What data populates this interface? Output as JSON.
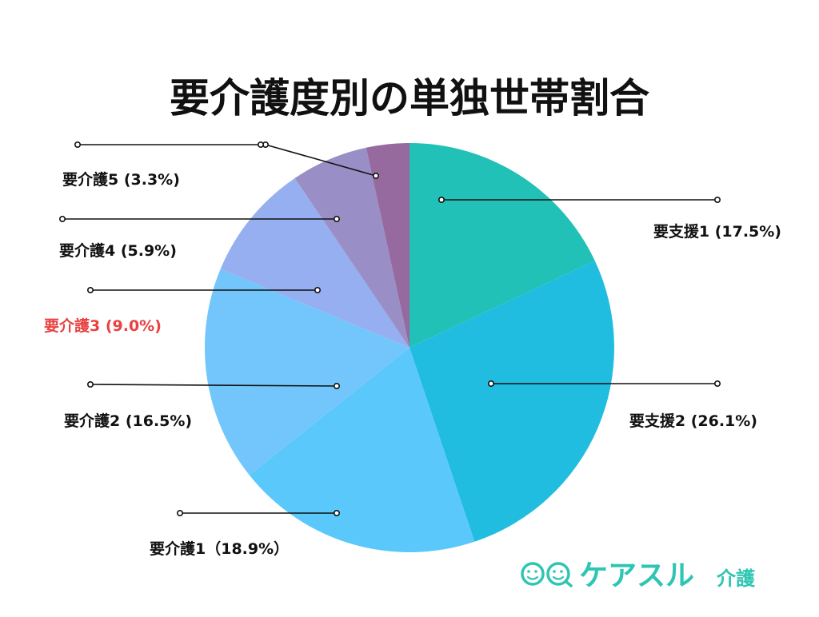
{
  "chart_data": {
    "type": "pie",
    "title": "要介護度別の単独世帯割合",
    "slices": [
      {
        "label": "要支援1 (17.5%)",
        "value": 17.5,
        "color": "#22c1b7",
        "label_color": "#111111"
      },
      {
        "label": "要支援2 (26.1%)",
        "value": 26.1,
        "color": "#21bde0",
        "label_color": "#111111"
      },
      {
        "label": "要介護1（18.9%）",
        "value": 18.9,
        "color": "#5bc8fb",
        "label_color": "#111111"
      },
      {
        "label": "要介護2 (16.5%)",
        "value": 16.5,
        "color": "#73c6fb",
        "label_color": "#111111"
      },
      {
        "label": "要介護3 (9.0%)",
        "value": 9.0,
        "color": "#96aff0",
        "label_color": "#ea4040"
      },
      {
        "label": "要介護4 (5.9%)",
        "value": 5.9,
        "color": "#9a8ec6",
        "label_color": "#111111"
      },
      {
        "label": "要介護5 (3.3%)",
        "value": 3.3,
        "color": "#96699f",
        "label_color": "#111111"
      }
    ]
  },
  "brand": {
    "name": "ケアスル",
    "suffix": "介護",
    "logo_icon": "care-face-logo-icon",
    "color": "#2fc5b3"
  }
}
